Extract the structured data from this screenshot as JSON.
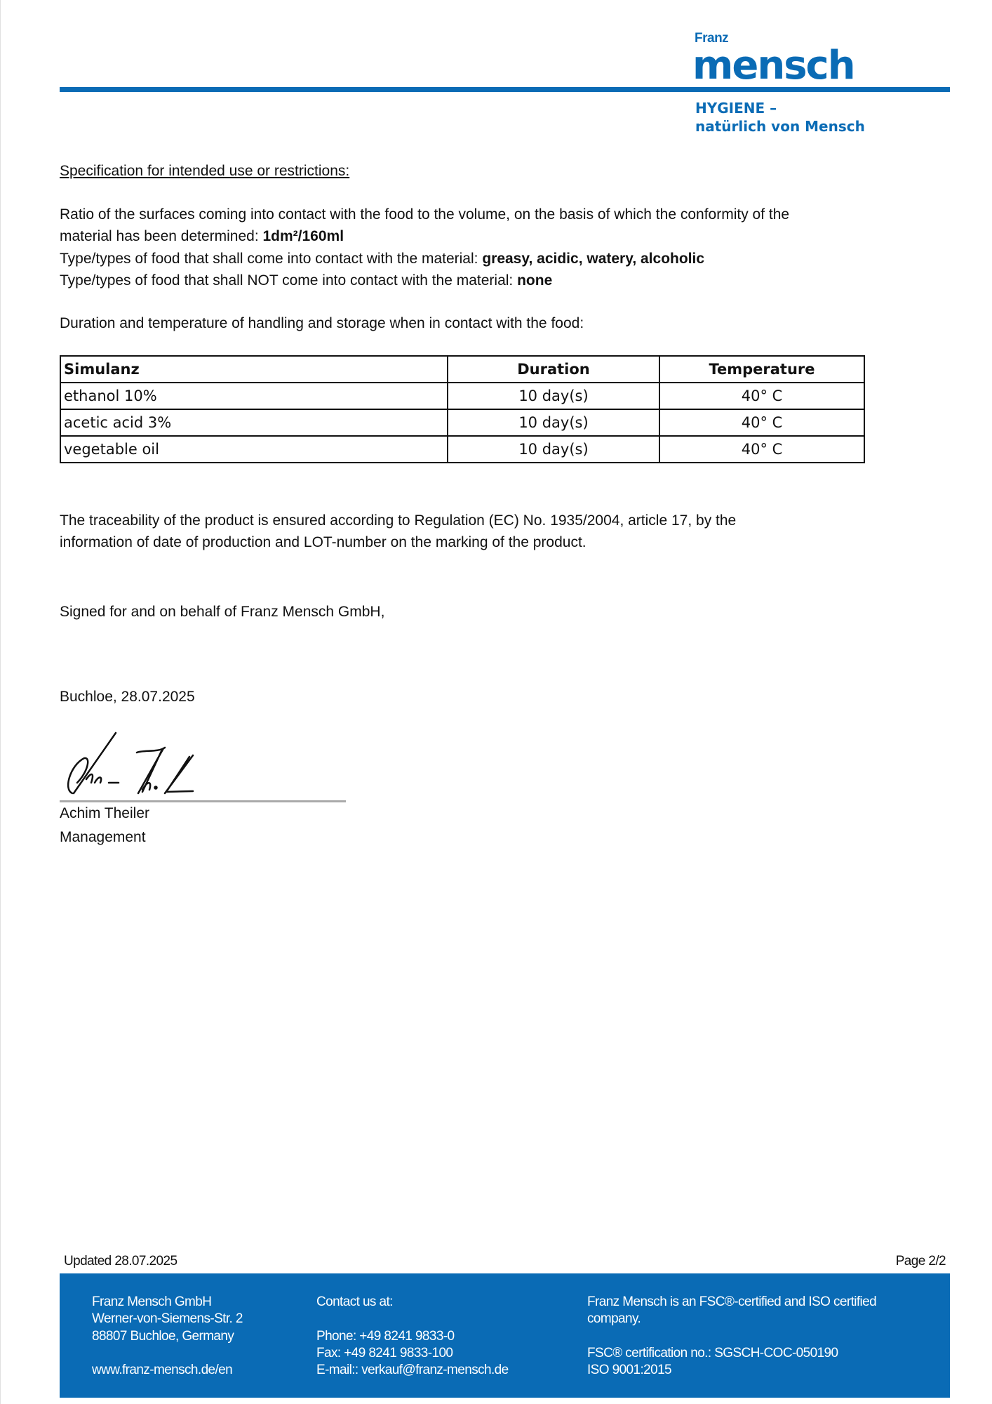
{
  "logo": {
    "franz": "Franz",
    "mensch": "mensch",
    "tagline_1": "HYGIENE –",
    "tagline_2": "natürlich von Mensch"
  },
  "heading": "Specification for intended use or restrictions:",
  "ratio": {
    "text_1": "Ratio of the surfaces coming into contact with the food to the volume, on the basis of which the conformity of the",
    "text_2": "material has been determined: ",
    "value": "1dm²/160ml"
  },
  "food_types": {
    "label": "Type/types of food that shall come into contact with the material: ",
    "value": "greasy, acidic, watery, alcoholic"
  },
  "food_not": {
    "label": "Type/types of food that shall NOT come into contact with the material: ",
    "value": "none"
  },
  "duration_intro": "Duration and temperature of handling and storage when in contact with the food:",
  "table": {
    "headers": [
      "Simulanz",
      "Duration",
      "Temperature"
    ],
    "rows": [
      [
        "ethanol 10%",
        "10 day(s)",
        "40° C"
      ],
      [
        "acetic acid 3%",
        "10 day(s)",
        "40° C"
      ],
      [
        "vegetable oil",
        "10 day(s)",
        "40° C"
      ]
    ]
  },
  "traceability": {
    "line_1": "The traceability of the product is ensured according to Regulation (EC) No. 1935/2004, article 17, by the",
    "line_2": "information of date of production and LOT-number on the marking of the product."
  },
  "signed": "Signed for and on behalf of Franz Mensch GmbH,",
  "place_date": "Buchloe, 28.07.2025",
  "signatory": {
    "name": "Achim Theiler",
    "role": "Management"
  },
  "footer": {
    "updated": "Updated 28.07.2025",
    "page": "Page 2/2",
    "company": [
      "Franz Mensch GmbH",
      "Werner-von-Siemens-Str. 2",
      "88807 Buchloe, Germany"
    ],
    "website": "www.franz-mensch.de/en",
    "contact_label": "Contact us at:",
    "phone": "Phone: +49 8241 9833-0",
    "fax": "Fax: +49 8241 9833-100",
    "email": "E-mail:: verkauf@franz-mensch.de",
    "cert_1": "Franz Mensch is an FSC®-certified and ISO certified",
    "cert_2": "company.",
    "fsc": "FSC® certification no.: SGSCH-COC-050190",
    "iso": "ISO 9001:2015"
  },
  "colors": {
    "brand_blue": "#0a6bb5"
  }
}
